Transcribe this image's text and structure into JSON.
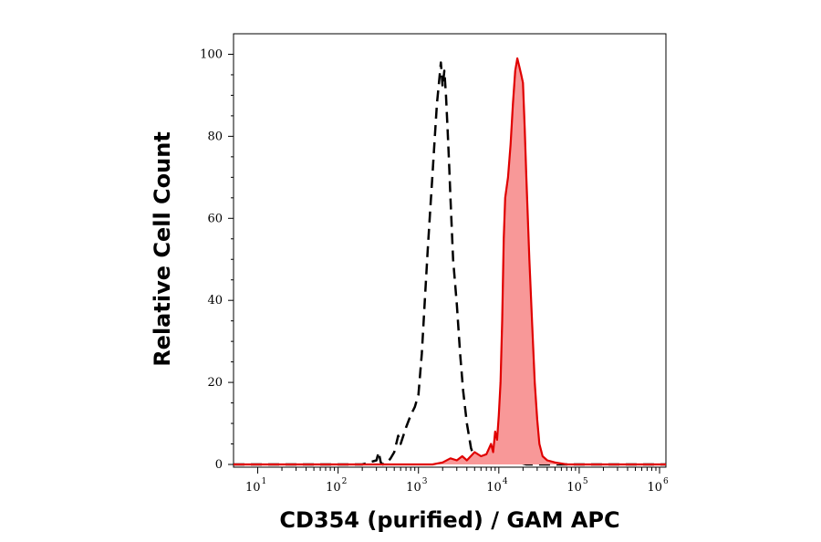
{
  "chart_data": {
    "type": "area",
    "xlabel": "CD354 (purified) / GAM APC",
    "ylabel": "Relative Cell Count",
    "x_scale": "log",
    "xlim": [
      5,
      1200000
    ],
    "ylim": [
      0,
      105
    ],
    "x_ticks": [
      {
        "base": "10",
        "exp": "1",
        "value": 10
      },
      {
        "base": "10",
        "exp": "2",
        "value": 100
      },
      {
        "base": "10",
        "exp": "3",
        "value": 1000
      },
      {
        "base": "10",
        "exp": "4",
        "value": 10000
      },
      {
        "base": "10",
        "exp": "5",
        "value": 100000
      },
      {
        "base": "10",
        "exp": "6",
        "value": 1000000
      }
    ],
    "y_ticks": [
      0,
      20,
      40,
      60,
      80,
      100
    ],
    "series": [
      {
        "style": "dashed-black",
        "color": "#000000",
        "x": [
          5,
          200,
          300,
          320,
          340,
          360,
          400,
          450,
          500,
          560,
          600,
          700,
          800,
          900,
          1000,
          1100,
          1200,
          1300,
          1400,
          1500,
          1600,
          1700,
          1800,
          1900,
          2000,
          2100,
          2200,
          2300,
          2400,
          2500,
          2700,
          3000,
          3300,
          3600,
          4000,
          4500,
          5000,
          6000,
          7000,
          8000,
          9000,
          10000,
          12000,
          14000,
          16000,
          18000,
          22000,
          30000,
          1200000
        ],
        "y": [
          0,
          0,
          1,
          3,
          0.5,
          0,
          0.3,
          1.5,
          3,
          7,
          5,
          9,
          12,
          14,
          17,
          27,
          40,
          52,
          62,
          71,
          80,
          88,
          93,
          98,
          92,
          96,
          90,
          82,
          74,
          65,
          50,
          39,
          27,
          18,
          10,
          4,
          1.5,
          0.5,
          0.5,
          0.8,
          3.5,
          2.5,
          3,
          1,
          2,
          0.5,
          0,
          0,
          0
        ]
      },
      {
        "style": "filled-red",
        "color": "#e00000",
        "fill": "#f89898",
        "x": [
          5,
          1500,
          2000,
          2500,
          3000,
          3500,
          4000,
          5000,
          6000,
          7000,
          8000,
          8500,
          9000,
          9500,
          10000,
          10500,
          11000,
          11500,
          12000,
          13000,
          14000,
          15000,
          16000,
          17000,
          18000,
          19000,
          20000,
          21000,
          22000,
          24000,
          26000,
          28000,
          30000,
          32000,
          35000,
          40000,
          50000,
          70000,
          1200000
        ],
        "y": [
          0,
          0,
          0.5,
          1.5,
          1,
          2,
          1,
          3,
          2,
          2.5,
          5,
          3,
          8,
          6,
          12,
          20,
          35,
          55,
          65,
          70,
          78,
          88,
          96,
          99,
          97,
          95,
          93,
          82,
          70,
          50,
          34,
          20,
          11,
          5,
          2,
          1,
          0.5,
          0,
          0
        ]
      }
    ]
  }
}
